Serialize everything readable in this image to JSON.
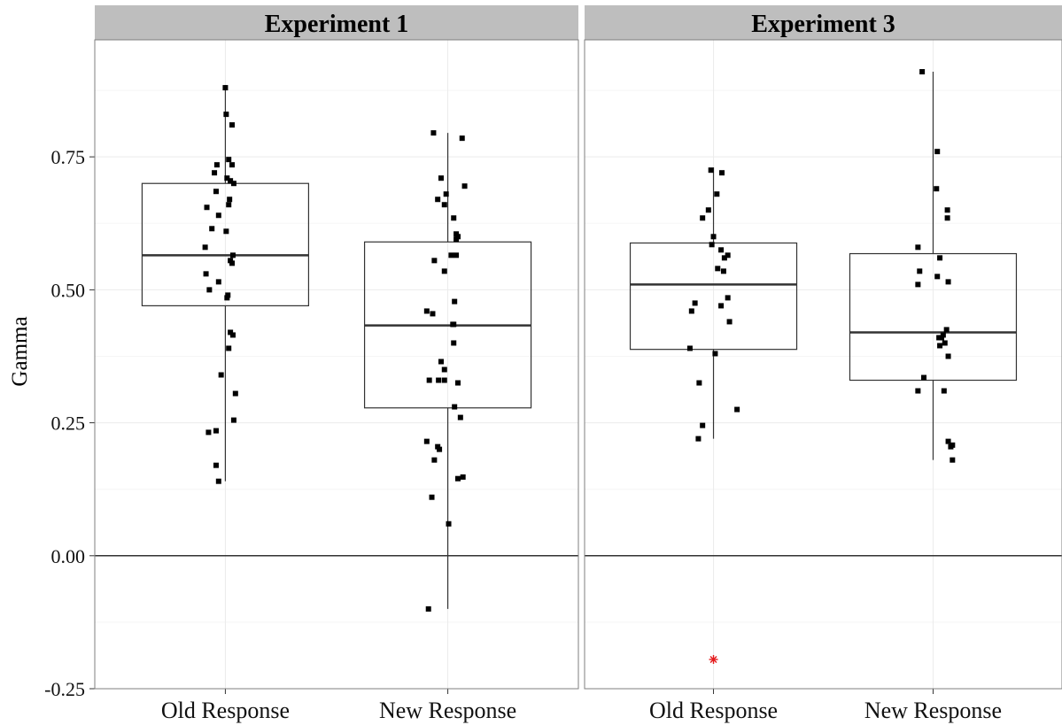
{
  "chart_data": {
    "type": "box",
    "ylabel": "Gamma",
    "xlabel": "",
    "ylim": [
      -0.25,
      0.97
    ],
    "yticks": [
      -0.25,
      0.0,
      0.25,
      0.5,
      0.75
    ],
    "ytick_labels": [
      "-0.25",
      "0.00",
      "0.25",
      "0.50",
      "0.75"
    ],
    "reference_line_y": 0.0,
    "grid": true,
    "categories": [
      "Old Response",
      "New Response"
    ],
    "panels": [
      {
        "title": "Experiment 1",
        "boxes": [
          {
            "category": "Old Response",
            "q1": 0.47,
            "median": 0.565,
            "q3": 0.7,
            "whisker_low": 0.14,
            "whisker_high": 0.885,
            "points": [
              [
                -0.0,
                0.88
              ],
              [
                0.01,
                0.83
              ],
              [
                0.08,
                0.81
              ],
              [
                0.04,
                0.745
              ],
              [
                -0.1,
                0.735
              ],
              [
                0.08,
                0.735
              ],
              [
                -0.13,
                0.72
              ],
              [
                0.02,
                0.71
              ],
              [
                0.06,
                0.705
              ],
              [
                0.1,
                0.7
              ],
              [
                -0.11,
                0.685
              ],
              [
                0.05,
                0.67
              ],
              [
                0.04,
                0.66
              ],
              [
                -0.22,
                0.655
              ],
              [
                -0.08,
                0.64
              ],
              [
                -0.16,
                0.615
              ],
              [
                0.01,
                0.61
              ],
              [
                -0.24,
                0.58
              ],
              [
                0.09,
                0.565
              ],
              [
                0.06,
                0.555
              ],
              [
                0.08,
                0.55
              ],
              [
                -0.23,
                0.53
              ],
              [
                -0.08,
                0.515
              ],
              [
                -0.19,
                0.5
              ],
              [
                0.03,
                0.49
              ],
              [
                0.02,
                0.485
              ],
              [
                0.06,
                0.42
              ],
              [
                0.09,
                0.415
              ],
              [
                0.04,
                0.39
              ],
              [
                -0.05,
                0.34
              ],
              [
                0.12,
                0.305
              ],
              [
                0.1,
                0.255
              ],
              [
                -0.11,
                0.235
              ],
              [
                -0.2,
                0.232
              ],
              [
                -0.11,
                0.17
              ],
              [
                -0.08,
                0.14
              ]
            ]
          },
          {
            "category": "New Response",
            "q1": 0.278,
            "median": 0.433,
            "q3": 0.59,
            "whisker_low": -0.1,
            "whisker_high": 0.795,
            "points": [
              [
                -0.17,
                0.795
              ],
              [
                0.17,
                0.785
              ],
              [
                0.2,
                0.695
              ],
              [
                -0.08,
                0.71
              ],
              [
                -0.02,
                0.68
              ],
              [
                -0.12,
                0.67
              ],
              [
                -0.04,
                0.66
              ],
              [
                0.07,
                0.635
              ],
              [
                0.1,
                0.605
              ],
              [
                0.1,
                0.595
              ],
              [
                0.12,
                0.6
              ],
              [
                0.1,
                0.565
              ],
              [
                0.04,
                0.565
              ],
              [
                -0.16,
                0.555
              ],
              [
                -0.04,
                0.535
              ],
              [
                0.08,
                0.478
              ],
              [
                -0.25,
                0.46
              ],
              [
                -0.18,
                0.455
              ],
              [
                0.06,
                0.435
              ],
              [
                0.07,
                0.435
              ],
              [
                0.07,
                0.4
              ],
              [
                -0.08,
                0.365
              ],
              [
                -0.04,
                0.35
              ],
              [
                -0.22,
                0.33
              ],
              [
                -0.11,
                0.33
              ],
              [
                -0.04,
                0.33
              ],
              [
                0.12,
                0.325
              ],
              [
                0.08,
                0.28
              ],
              [
                0.15,
                0.26
              ],
              [
                -0.25,
                0.215
              ],
              [
                -0.12,
                0.205
              ],
              [
                -0.1,
                0.2
              ],
              [
                -0.16,
                0.18
              ],
              [
                0.12,
                0.145
              ],
              [
                0.18,
                0.148
              ],
              [
                -0.19,
                0.11
              ],
              [
                0.01,
                0.06
              ],
              [
                -0.23,
                -0.1
              ]
            ]
          }
        ]
      },
      {
        "title": "Experiment 3",
        "boxes": [
          {
            "category": "Old Response",
            "q1": 0.388,
            "median": 0.51,
            "q3": 0.588,
            "whisker_low": 0.22,
            "whisker_high": 0.73,
            "points": [
              [
                -0.03,
                0.725
              ],
              [
                0.1,
                0.72
              ],
              [
                0.04,
                0.68
              ],
              [
                -0.06,
                0.65
              ],
              [
                -0.13,
                0.635
              ],
              [
                0.0,
                0.6
              ],
              [
                -0.02,
                0.585
              ],
              [
                0.09,
                0.575
              ],
              [
                0.17,
                0.565
              ],
              [
                0.13,
                0.56
              ],
              [
                0.05,
                0.54
              ],
              [
                0.12,
                0.535
              ],
              [
                0.17,
                0.485
              ],
              [
                -0.22,
                0.475
              ],
              [
                0.09,
                0.47
              ],
              [
                -0.26,
                0.46
              ],
              [
                0.19,
                0.44
              ],
              [
                -0.28,
                0.39
              ],
              [
                0.02,
                0.38
              ],
              [
                -0.17,
                0.325
              ],
              [
                0.28,
                0.275
              ],
              [
                -0.13,
                0.245
              ],
              [
                -0.18,
                0.22
              ],
              [
                0.0,
                -0.195
              ]
            ],
            "outlier": -0.195
          },
          {
            "category": "New Response",
            "q1": 0.33,
            "median": 0.42,
            "q3": 0.568,
            "whisker_low": 0.18,
            "whisker_high": 0.91,
            "points": [
              [
                -0.13,
                0.91
              ],
              [
                0.05,
                0.76
              ],
              [
                0.04,
                0.69
              ],
              [
                0.17,
                0.65
              ],
              [
                0.17,
                0.635
              ],
              [
                -0.18,
                0.58
              ],
              [
                0.08,
                0.56
              ],
              [
                -0.16,
                0.535
              ],
              [
                0.05,
                0.525
              ],
              [
                0.18,
                0.515
              ],
              [
                -0.18,
                0.51
              ],
              [
                0.12,
                0.415
              ],
              [
                0.07,
                0.41
              ],
              [
                0.14,
                0.4
              ],
              [
                0.16,
                0.425
              ],
              [
                0.1,
                0.41
              ],
              [
                0.08,
                0.395
              ],
              [
                0.18,
                0.375
              ],
              [
                -0.11,
                0.335
              ],
              [
                0.13,
                0.31
              ],
              [
                -0.18,
                0.31
              ],
              [
                0.18,
                0.215
              ],
              [
                0.23,
                0.208
              ],
              [
                0.21,
                0.205
              ],
              [
                0.23,
                0.18
              ]
            ]
          }
        ]
      }
    ],
    "colors": {
      "strip": "#bebebe",
      "panel_border": "#7f7f7f",
      "grid_major": "#ebebeb",
      "grid_minor": "#f5f5f5",
      "box_stroke": "#333333",
      "point": "#000000",
      "outlier": "#e41a1c",
      "zero_line": "#333333"
    }
  }
}
